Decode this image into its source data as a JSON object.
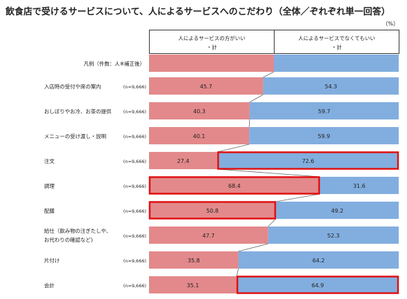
{
  "chart_data": {
    "type": "bar",
    "stacked": true,
    "orientation": "horizontal",
    "title": "飲食店で受けるサービスについて、人によるサービスへのこだわり（全体／ぞれぞれ単一回答）",
    "unit": "（%）",
    "legend_caption": "凡例（件数：人※補正後）",
    "series": [
      {
        "name": "人によるサービスの方がいい・計",
        "name_line1": "人によるサービスの方がいい",
        "name_line2": "・計",
        "color": "#e3898b",
        "values": [
          45.7,
          40.3,
          40.1,
          27.4,
          68.4,
          50.8,
          47.7,
          35.8,
          35.1
        ]
      },
      {
        "name": "人によるサービスでなくてもいい・計",
        "name_line1": "人によるサービスでなくてもいい",
        "name_line2": "・計",
        "color": "#82aedf",
        "values": [
          54.3,
          59.7,
          59.9,
          72.6,
          31.6,
          49.2,
          52.3,
          64.2,
          64.9
        ]
      }
    ],
    "categories": [
      {
        "label": "入店時の受付や席の案内",
        "n": "(n=9,666)"
      },
      {
        "label": "おしぼりやお冷、お茶の提供",
        "n": "(n=9,666)"
      },
      {
        "label": "メニューの受け渡し・説明",
        "n": "(n=9,666)"
      },
      {
        "label": "注文",
        "n": "(n=9,666)"
      },
      {
        "label": "調理",
        "n": "(n=9,666)"
      },
      {
        "label": "配膳",
        "n": "(n=9,666)"
      },
      {
        "label": "給仕（飲み物の注ぎたしや、",
        "label2": "お代わりの確認など)",
        "n": "(n=9,666)"
      },
      {
        "label": "片付け",
        "n": "(n=9,666)"
      },
      {
        "label": "会計",
        "n": "(n=9,666)"
      }
    ],
    "highlights": [
      {
        "row": 3,
        "series": 1
      },
      {
        "row": 4,
        "series": 0
      },
      {
        "row": 5,
        "series": 0
      },
      {
        "row": 8,
        "series": 1
      }
    ],
    "highlight_color": "#e01010",
    "xlim": [
      0,
      100
    ]
  }
}
